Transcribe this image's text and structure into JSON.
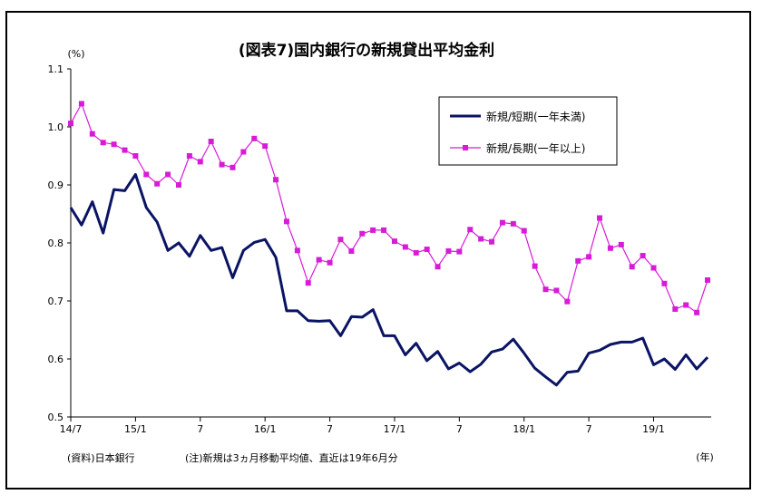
{
  "chart_data": {
    "type": "line",
    "title": "(図表7)国内銀行の新規貸出平均金利",
    "ylabel": "(%)",
    "xlabel": "(年)",
    "ylim": [
      0.5,
      1.1
    ],
    "yticks": [
      "1.1",
      "1.0",
      "0.9",
      "0.8",
      "0.7",
      "0.6",
      "0.5"
    ],
    "xtick_labels": [
      {
        "label": "14/7",
        "index": 0
      },
      {
        "label": "15/1",
        "index": 6
      },
      {
        "label": "7",
        "index": 12
      },
      {
        "label": "16/1",
        "index": 18
      },
      {
        "label": "7",
        "index": 24
      },
      {
        "label": "17/1",
        "index": 30
      },
      {
        "label": "7",
        "index": 36
      },
      {
        "label": "18/1",
        "index": 42
      },
      {
        "label": "7",
        "index": 48
      },
      {
        "label": "19/1",
        "index": 54
      }
    ],
    "legend_position": "top-right",
    "grid": false,
    "series": [
      {
        "name": "新規/短期(一年未満)",
        "color": "#0a1464",
        "marker": "none",
        "values": [
          0.861,
          0.831,
          0.871,
          0.817,
          0.892,
          0.89,
          0.918,
          0.861,
          0.836,
          0.787,
          0.8,
          0.777,
          0.813,
          0.787,
          0.792,
          0.74,
          0.787,
          0.801,
          0.806,
          0.775,
          0.683,
          0.683,
          0.666,
          0.665,
          0.666,
          0.64,
          0.673,
          0.672,
          0.685,
          0.64,
          0.64,
          0.607,
          0.627,
          0.597,
          0.613,
          0.583,
          0.593,
          0.578,
          0.591,
          0.612,
          0.617,
          0.634,
          0.61,
          0.584,
          0.569,
          0.555,
          0.577,
          0.579,
          0.61,
          0.615,
          0.625,
          0.629,
          0.629,
          0.636,
          0.59,
          0.6,
          0.582,
          0.607,
          0.583,
          0.603
        ]
      },
      {
        "name": "新規/長期(一年以上)",
        "color": "#d81bd8",
        "marker": "square",
        "values": [
          1.006,
          1.04,
          0.988,
          0.973,
          0.97,
          0.96,
          0.95,
          0.918,
          0.902,
          0.918,
          0.9,
          0.95,
          0.94,
          0.975,
          0.935,
          0.93,
          0.957,
          0.98,
          0.967,
          0.909,
          0.837,
          0.787,
          0.731,
          0.771,
          0.766,
          0.806,
          0.786,
          0.816,
          0.822,
          0.822,
          0.803,
          0.793,
          0.783,
          0.789,
          0.759,
          0.786,
          0.785,
          0.823,
          0.807,
          0.802,
          0.835,
          0.833,
          0.821,
          0.76,
          0.72,
          0.718,
          0.699,
          0.769,
          0.776,
          0.843,
          0.791,
          0.797,
          0.759,
          0.778,
          0.757,
          0.73,
          0.686,
          0.693,
          0.68,
          0.736
        ]
      }
    ]
  },
  "footer": {
    "source": "(資料)日本銀行",
    "note": "(注)新規は3ヵ月移動平均値、直近は19年6月分"
  }
}
